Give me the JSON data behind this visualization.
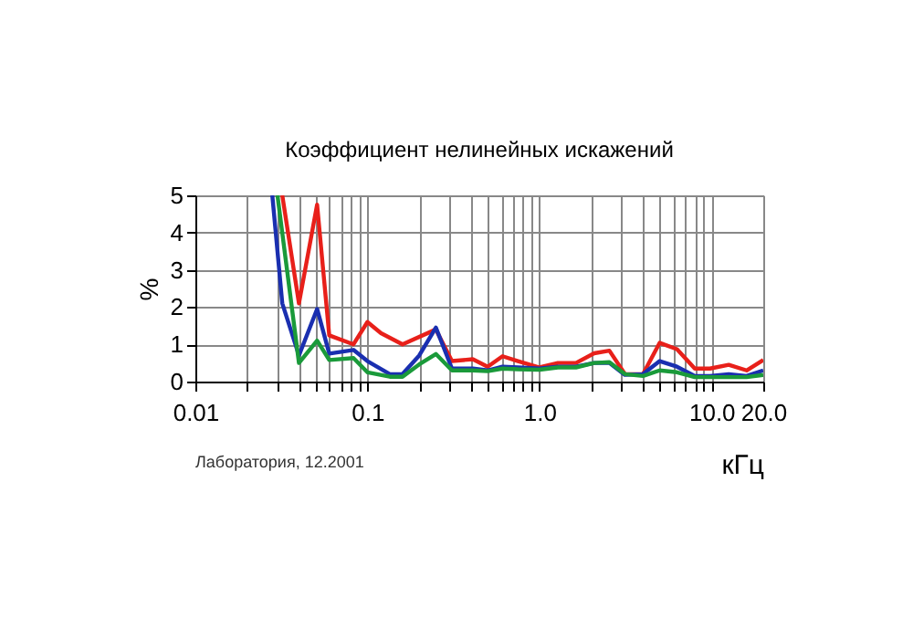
{
  "chart_data": {
    "type": "line",
    "title": "Коэффициент нелинейных искажений",
    "xlabel": "кГц",
    "ylabel": "%",
    "log": "x",
    "grid": true,
    "legend": false,
    "marker": "none",
    "line_style": "solid",
    "xlim": [
      0.01,
      20
    ],
    "ylim": [
      0,
      5
    ],
    "xticks": [
      0.01,
      {
        "value": 0.02,
        "label": null
      },
      {
        "value": 0.03,
        "label": null
      },
      {
        "value": 0.04,
        "label": null
      },
      {
        "value": 0.05,
        "label": null
      },
      {
        "value": 0.06,
        "label": null
      },
      {
        "value": 0.07,
        "label": null
      },
      {
        "value": 0.08,
        "label": null
      },
      {
        "value": 0.09,
        "label": null
      },
      0.1,
      {
        "value": 0.2,
        "label": null
      },
      {
        "value": 0.3,
        "label": null
      },
      {
        "value": 0.4,
        "label": null
      },
      {
        "value": 0.5,
        "label": null
      },
      {
        "value": 0.6,
        "label": null
      },
      {
        "value": 0.7,
        "label": null
      },
      {
        "value": 0.8,
        "label": null
      },
      {
        "value": 0.9,
        "label": null
      },
      {
        "value": 1,
        "label": "1.0"
      },
      {
        "value": 2,
        "label": null
      },
      {
        "value": 3,
        "label": null
      },
      {
        "value": 4,
        "label": null
      },
      {
        "value": 5,
        "label": null
      },
      {
        "value": 6,
        "label": null
      },
      {
        "value": 7,
        "label": null
      },
      {
        "value": 8,
        "label": null
      },
      {
        "value": 9,
        "label": null
      },
      {
        "value": 10,
        "label": "10.0"
      },
      {
        "value": 20,
        "label": "20.0"
      }
    ],
    "yticks": [
      0,
      1,
      2,
      3,
      4,
      5
    ],
    "series": [
      {
        "color": "#e8201a",
        "x": [
          0.032,
          0.04,
          0.051,
          0.06,
          0.083,
          0.1,
          0.12,
          0.16,
          0.25,
          0.31,
          0.41,
          0.5,
          0.61,
          0.75,
          1.0,
          1.28,
          1.63,
          2.08,
          2.55,
          3.14,
          4.0,
          5.0,
          6.3,
          8.0,
          9.8,
          12.6,
          16.0,
          20
        ],
        "values": [
          5,
          2.1,
          4.75,
          1.24,
          1.0,
          1.6,
          1.3,
          1.0,
          1.4,
          0.55,
          0.6,
          0.4,
          0.68,
          0.55,
          0.38,
          0.5,
          0.5,
          0.76,
          0.83,
          0.2,
          0.2,
          1.04,
          0.87,
          0.35,
          0.35,
          0.45,
          0.3,
          0.58
        ]
      },
      {
        "color": "#1a2fb0",
        "x": [
          0.028,
          0.032,
          0.04,
          0.051,
          0.06,
          0.083,
          0.1,
          0.135,
          0.16,
          0.2,
          0.25,
          0.31,
          0.41,
          0.5,
          0.61,
          0.75,
          1.0,
          1.28,
          1.63,
          2.08,
          2.55,
          3.14,
          4.0,
          5.0,
          6.3,
          8.0,
          9.8,
          12.6,
          16.0,
          20
        ],
        "values": [
          5,
          2.1,
          0.7,
          1.95,
          0.75,
          0.85,
          0.55,
          0.2,
          0.2,
          0.7,
          1.45,
          0.35,
          0.35,
          0.3,
          0.4,
          0.38,
          0.35,
          0.4,
          0.4,
          0.5,
          0.5,
          0.18,
          0.2,
          0.55,
          0.4,
          0.15,
          0.15,
          0.2,
          0.15,
          0.3
        ]
      },
      {
        "color": "#1a9a3a",
        "x": [
          0.03,
          0.04,
          0.051,
          0.06,
          0.083,
          0.1,
          0.135,
          0.16,
          0.2,
          0.25,
          0.31,
          0.41,
          0.5,
          0.61,
          0.75,
          1.0,
          1.28,
          1.63,
          2.08,
          2.55,
          3.14,
          4.0,
          5.0,
          6.3,
          8.0,
          9.8,
          12.6,
          16.0,
          20
        ],
        "values": [
          5,
          0.5,
          1.1,
          0.58,
          0.63,
          0.25,
          0.13,
          0.13,
          0.46,
          0.74,
          0.3,
          0.3,
          0.28,
          0.35,
          0.33,
          0.32,
          0.38,
          0.38,
          0.5,
          0.52,
          0.2,
          0.15,
          0.3,
          0.25,
          0.12,
          0.12,
          0.12,
          0.12,
          0.18
        ]
      }
    ],
    "annotations": [
      "Лаборатория, 12.2001"
    ]
  }
}
